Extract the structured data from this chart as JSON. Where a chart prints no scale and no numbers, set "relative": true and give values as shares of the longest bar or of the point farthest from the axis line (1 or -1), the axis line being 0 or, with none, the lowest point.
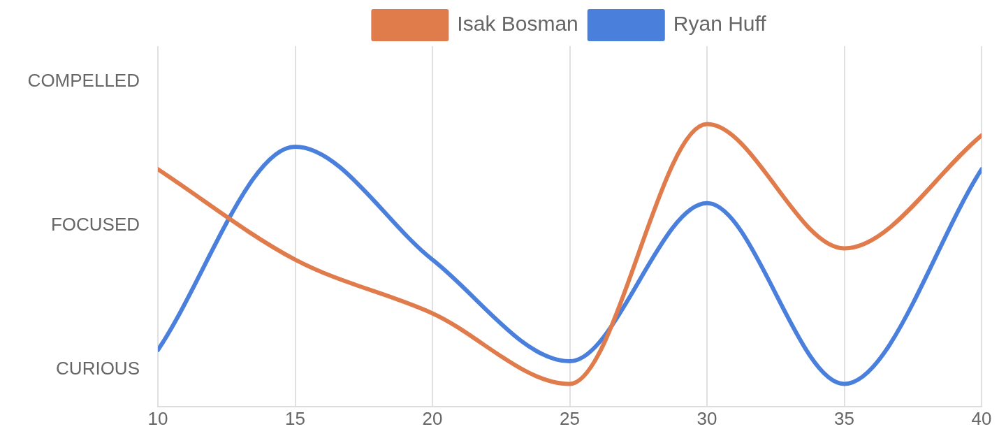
{
  "chart_data": {
    "type": "line",
    "x": [
      10,
      15,
      20,
      25,
      30,
      35,
      40
    ],
    "series": [
      {
        "name": "Isak Bosman",
        "color": "#e07b4c",
        "values": [
          0.84,
          0.52,
          0.33,
          0.08,
          1,
          0.56,
          0.96
        ]
      },
      {
        "name": "Ryan Huff",
        "color": "#4a80dc",
        "values": [
          0.2,
          0.92,
          0.52,
          0.16,
          0.72,
          0.08,
          0.84
        ]
      }
    ],
    "relative": true,
    "xlim": [
      10,
      40
    ],
    "xticks": [
      10,
      15,
      20,
      25,
      30,
      35,
      40
    ],
    "annotations": [
      "CURIOUS",
      "FOCUSED",
      "COMPELLED"
    ],
    "grid": "x",
    "legend": "top",
    "marker": "none",
    "line_style": "solid"
  }
}
